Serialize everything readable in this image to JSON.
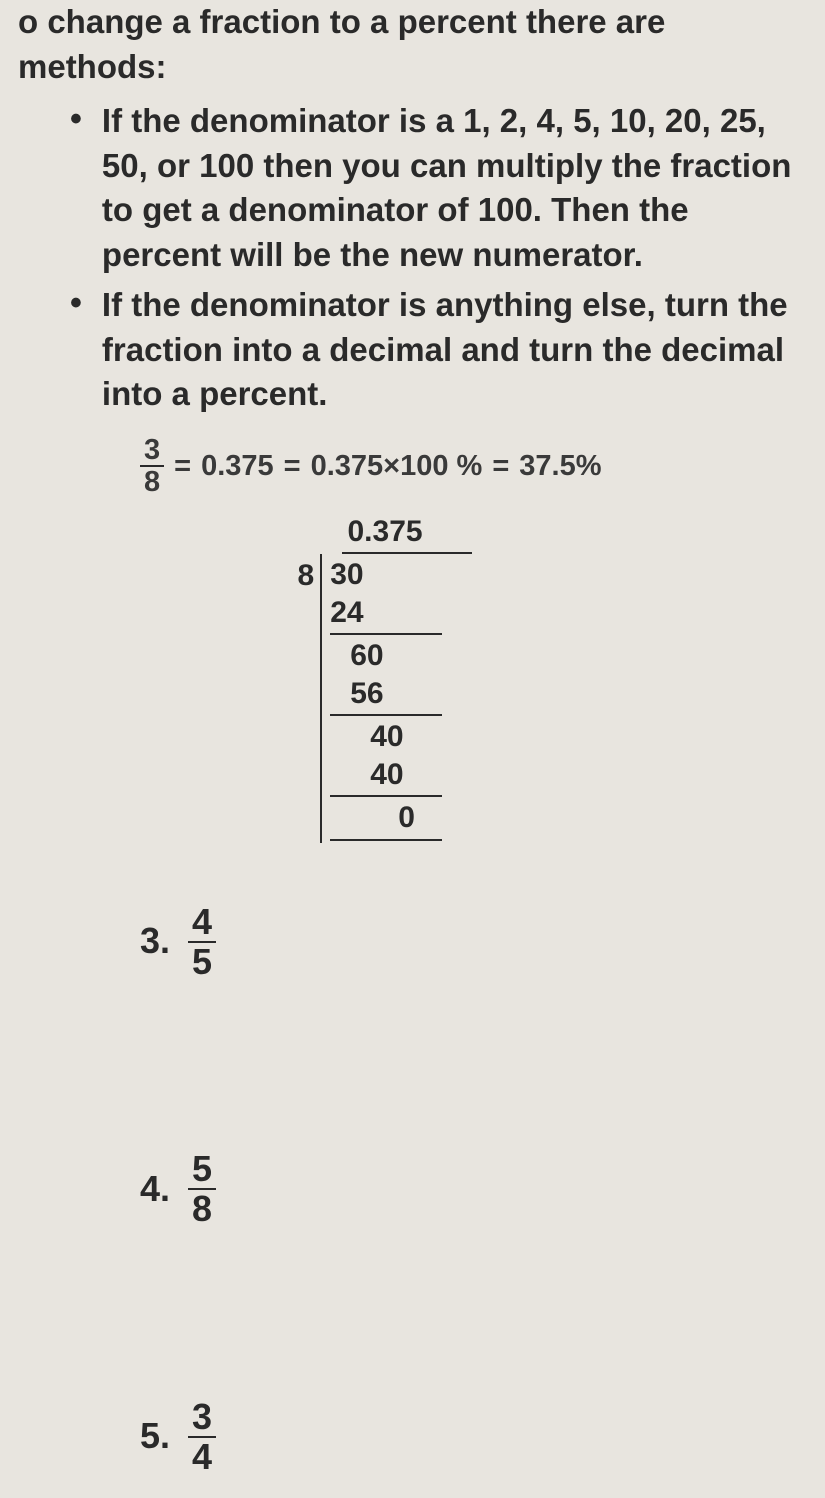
{
  "intro": {
    "line1": "o change a fraction to a percent there are",
    "line2": "methods:"
  },
  "bullets": [
    "If the denominator is a 1, 2, 4, 5, 10, 20, 25, 50, or 100 then you can multiply the fraction to get a denominator of 100. Then the percent will be the new numerator.",
    "If the denominator is anything else, turn the fraction into a decimal and turn the decimal into a percent."
  ],
  "equation": {
    "frac_num": "3",
    "frac_den": "8",
    "eq1": "=",
    "dec": "0.375",
    "eq2": "=",
    "expr": "0.375×100 %",
    "eq3": "=",
    "result": "37.5%"
  },
  "longdiv": {
    "quotient": "0.375",
    "divisor": "8",
    "r0": "30",
    "r1": "24",
    "r2": "60",
    "r3": "56",
    "r4": "40",
    "r5": "40",
    "r6": "0"
  },
  "problems": [
    {
      "n": "3.",
      "num": "4",
      "den": "5"
    },
    {
      "n": "4.",
      "num": "5",
      "den": "8"
    },
    {
      "n": "5.",
      "num": "3",
      "den": "4"
    }
  ]
}
